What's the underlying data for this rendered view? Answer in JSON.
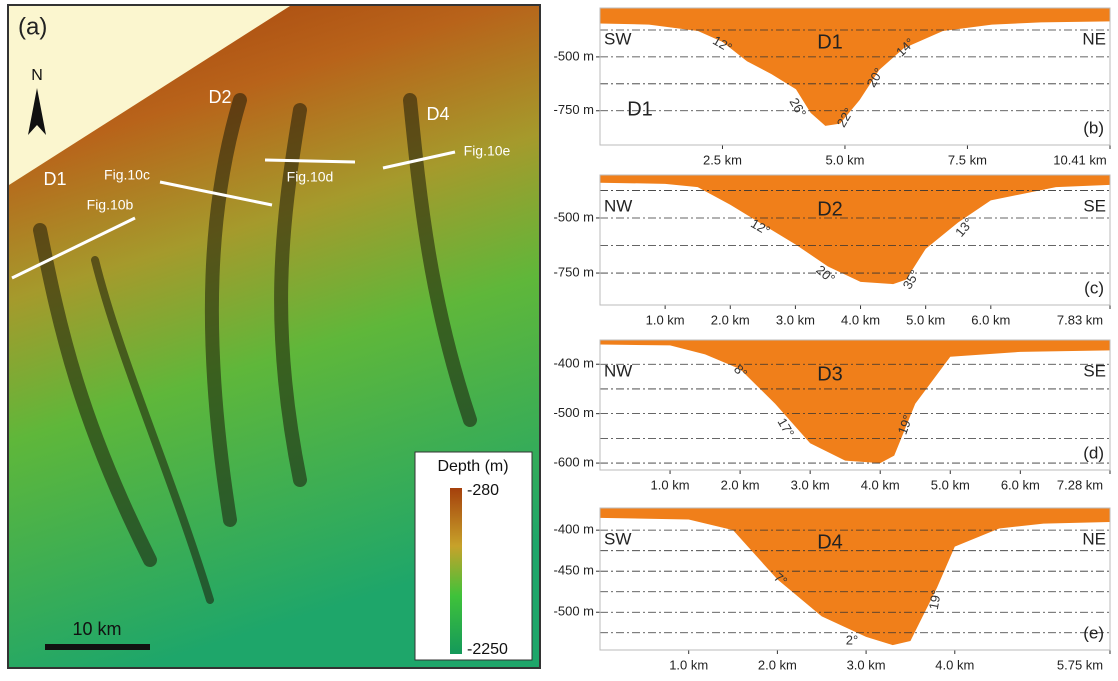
{
  "map": {
    "panel_label": "(a)",
    "north": "N",
    "canyons": [
      "D1",
      "D2",
      "D4"
    ],
    "profile_lines": [
      "Fig.10b",
      "Fig.10c",
      "Fig.10d",
      "Fig.10e"
    ],
    "legend": {
      "title": "Depth (m)",
      "max": "-280",
      "min": "-2250"
    },
    "scale_bar": "10 km"
  },
  "chart_data": [
    {
      "type": "area",
      "title": "D1",
      "panel_label": "(b)",
      "left_label": "SW",
      "right_label": "NE",
      "color": "#f07f1a",
      "annotations": [
        "D1",
        "12°",
        "26°",
        "22°",
        "20°",
        "14°"
      ],
      "x": [
        0,
        1,
        2,
        2.5,
        3,
        3.5,
        4,
        4.3,
        4.6,
        4.9,
        5.3,
        5.7,
        6.2,
        7,
        8,
        9,
        10.41
      ],
      "values": [
        -345,
        -350,
        -380,
        -430,
        -520,
        -580,
        -650,
        -760,
        -820,
        -810,
        -700,
        -560,
        -460,
        -380,
        -350,
        -340,
        -335
      ],
      "xlim": [
        0,
        10.41
      ],
      "ylim": [
        -909,
        -273
      ],
      "xticks": [
        {
          "value": 2.5,
          "label": "2.5 km"
        },
        {
          "value": 5.0,
          "label": "5.0 km"
        },
        {
          "value": 7.5,
          "label": "7.5 km"
        },
        {
          "value": 10.41,
          "label": "10.41 km"
        }
      ],
      "yticks": [
        {
          "value": -500,
          "label": "-500 m"
        },
        {
          "value": -750,
          "label": "-750 m"
        }
      ],
      "grid_lines": [
        -375,
        -500,
        -625,
        -750
      ]
    },
    {
      "type": "area",
      "title": "D2",
      "panel_label": "(c)",
      "left_label": "NW",
      "right_label": "SE",
      "color": "#f07f1a",
      "annotations": [
        "12°",
        "20°",
        "35°",
        "13°"
      ],
      "x": [
        0,
        1,
        1.5,
        2,
        2.5,
        3,
        3.5,
        4,
        4.5,
        4.7,
        5,
        5.5,
        6,
        7,
        7.83
      ],
      "values": [
        -340,
        -345,
        -360,
        -440,
        -530,
        -620,
        -720,
        -790,
        -800,
        -780,
        -640,
        -520,
        -420,
        -360,
        -350
      ],
      "xlim": [
        0,
        7.83
      ],
      "ylim": [
        -895,
        -305
      ],
      "xticks": [
        {
          "value": 1.0,
          "label": "1.0 km"
        },
        {
          "value": 2.0,
          "label": "2.0 km"
        },
        {
          "value": 3.0,
          "label": "3.0 km"
        },
        {
          "value": 4.0,
          "label": "4.0 km"
        },
        {
          "value": 5.0,
          "label": "5.0 km"
        },
        {
          "value": 6.0,
          "label": "6.0 km"
        },
        {
          "value": 7.83,
          "label": "7.83 km"
        }
      ],
      "yticks": [
        {
          "value": -500,
          "label": "-500 m"
        },
        {
          "value": -750,
          "label": "-750 m"
        }
      ],
      "grid_lines": [
        -375,
        -500,
        -625,
        -750
      ]
    },
    {
      "type": "area",
      "title": "D3",
      "panel_label": "(d)",
      "left_label": "NW",
      "right_label": "SE",
      "color": "#f07f1a",
      "annotations": [
        "8°",
        "17°",
        "19°"
      ],
      "x": [
        0,
        1,
        1.5,
        2,
        2.5,
        3,
        3.5,
        4,
        4.2,
        4.5,
        5,
        6,
        7.28
      ],
      "values": [
        -360,
        -362,
        -380,
        -410,
        -480,
        -560,
        -595,
        -600,
        -585,
        -480,
        -385,
        -375,
        -372
      ],
      "xlim": [
        0,
        7.28
      ],
      "ylim": [
        -614,
        -351
      ],
      "xticks": [
        {
          "value": 1.0,
          "label": "1.0 km"
        },
        {
          "value": 2.0,
          "label": "2.0 km"
        },
        {
          "value": 3.0,
          "label": "3.0 km"
        },
        {
          "value": 4.0,
          "label": "4.0 km"
        },
        {
          "value": 5.0,
          "label": "5.0 km"
        },
        {
          "value": 6.0,
          "label": "6.0 km"
        },
        {
          "value": 7.28,
          "label": "7.28 km"
        }
      ],
      "yticks": [
        {
          "value": -400,
          "label": "-400 m"
        },
        {
          "value": -500,
          "label": "-500 m"
        },
        {
          "value": -600,
          "label": "-600 m"
        }
      ],
      "grid_lines": [
        -400,
        -450,
        -500,
        -550,
        -600
      ]
    },
    {
      "type": "area",
      "title": "D4",
      "panel_label": "(e)",
      "left_label": "SW",
      "right_label": "NE",
      "color": "#f07f1a",
      "annotations": [
        "7°",
        "2°",
        "19°"
      ],
      "x": [
        0,
        1,
        1.5,
        2,
        2.5,
        3,
        3.3,
        3.5,
        3.8,
        4,
        4.5,
        5,
        5.75
      ],
      "values": [
        -385,
        -387,
        -400,
        -460,
        -505,
        -530,
        -540,
        -535,
        -470,
        -420,
        -398,
        -392,
        -390
      ],
      "xlim": [
        0,
        5.75
      ],
      "ylim": [
        -546,
        -373
      ],
      "xticks": [
        {
          "value": 1.0,
          "label": "1.0 km"
        },
        {
          "value": 2.0,
          "label": "2.0 km"
        },
        {
          "value": 3.0,
          "label": "3.0 km"
        },
        {
          "value": 4.0,
          "label": "4.0 km"
        },
        {
          "value": 5.75,
          "label": "5.75 km"
        }
      ],
      "yticks": [
        {
          "value": -400,
          "label": "-400 m"
        },
        {
          "value": -450,
          "label": "-450 m"
        },
        {
          "value": -500,
          "label": "-500 m"
        }
      ],
      "grid_lines": [
        -400,
        -425,
        -450,
        -475,
        -500,
        -525
      ]
    }
  ]
}
